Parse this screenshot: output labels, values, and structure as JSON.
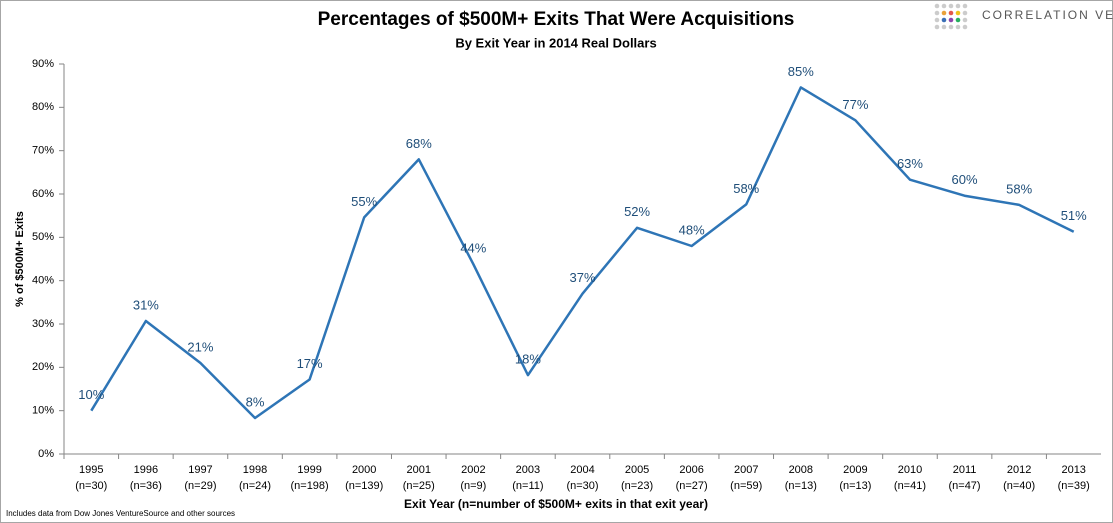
{
  "brand": "Correlation Ventures",
  "footnote": "Includes data from Dow Jones VentureSource and other sources",
  "chart_data": {
    "type": "line",
    "title": "Percentages of $500M+ Exits That Were Acquisitions",
    "subtitle": "By Exit Year in 2014 Real Dollars",
    "x_label": "Exit Year (n=number of $500M+ exits in that exit year)",
    "y_label": "% of $500M+ Exits",
    "categories": [
      "1995",
      "1996",
      "1997",
      "1998",
      "1999",
      "2000",
      "2001",
      "2002",
      "2003",
      "2004",
      "2005",
      "2006",
      "2007",
      "2008",
      "2009",
      "2010",
      "2011",
      "2012",
      "2013"
    ],
    "category_counts": [
      "(n=30)",
      "(n=36)",
      "(n=29)",
      "(n=24)",
      "(n=198)",
      "(n=139)",
      "(n=25)",
      "(n=9)",
      "(n=11)",
      "(n=30)",
      "(n=23)",
      "(n=27)",
      "(n=59)",
      "(n=13)",
      "(n=13)",
      "(n=41)",
      "(n=47)",
      "(n=40)",
      "(n=39)"
    ],
    "series": [
      {
        "name": "Acquisitions",
        "color": "#2e75b6",
        "values": [
          10,
          30.7,
          21,
          8.3,
          17.2,
          54.6,
          68,
          43.8,
          18.2,
          37,
          52.2,
          48,
          57.6,
          84.6,
          77,
          63.3,
          59.6,
          57.5,
          51.3
        ],
        "value_labels": [
          "10%",
          "31%",
          "21%",
          "8%",
          "17%",
          "55%",
          "68%",
          "44%",
          "18%",
          "37%",
          "52%",
          "48%",
          "58%",
          "85%",
          "77%",
          "63%",
          "60%",
          "58%",
          "51%"
        ]
      }
    ],
    "ylim": [
      0,
      90
    ],
    "yticks": [
      {
        "value": 0,
        "label": "0%"
      },
      {
        "value": 10,
        "label": "10%"
      },
      {
        "value": 20,
        "label": "20%"
      },
      {
        "value": 30,
        "label": "30%"
      },
      {
        "value": 40,
        "label": "40%"
      },
      {
        "value": 50,
        "label": "50%"
      },
      {
        "value": 60,
        "label": "60%"
      },
      {
        "value": 70,
        "label": "70%"
      },
      {
        "value": 80,
        "label": "80%"
      },
      {
        "value": 90,
        "label": "90%"
      }
    ],
    "grid": false
  }
}
